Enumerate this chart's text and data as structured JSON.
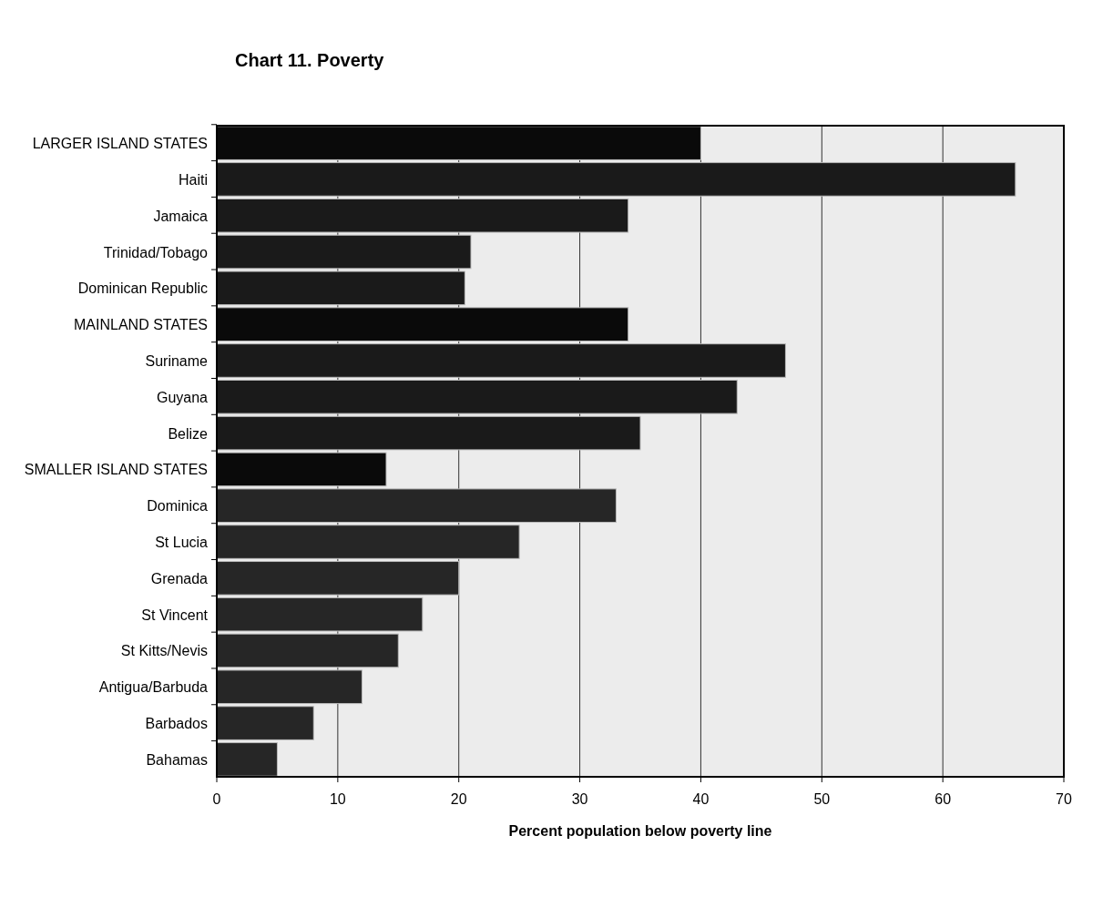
{
  "chart_data": {
    "type": "bar",
    "orientation": "horizontal",
    "title": "Chart 11. Poverty",
    "xlabel": "Percent population below poverty line",
    "categories": [
      "LARGER ISLAND STATES",
      "Haiti",
      "Jamaica",
      "Trinidad/Tobago",
      "Dominican Republic",
      "MAINLAND STATES",
      "Suriname",
      "Guyana",
      "Belize",
      "SMALLER ISLAND STATES",
      "Dominica",
      "St Lucia",
      "Grenada",
      "St Vincent",
      "St Kitts/Nevis",
      "Antigua/Barbuda",
      "Barbados",
      "Bahamas"
    ],
    "values": [
      40,
      66,
      34,
      21,
      20.5,
      34,
      47,
      43,
      35,
      14,
      33,
      25,
      20,
      17,
      15,
      12,
      8,
      5
    ],
    "colors": [
      "#0a0a0a",
      "#1a1a1a",
      "#1a1a1a",
      "#1a1a1a",
      "#1a1a1a",
      "#0a0a0a",
      "#1a1a1a",
      "#1a1a1a",
      "#1a1a1a",
      "#0a0a0a",
      "#262626",
      "#262626",
      "#262626",
      "#262626",
      "#262626",
      "#262626",
      "#262626",
      "#262626"
    ],
    "xlim": [
      0,
      70
    ],
    "xticks": [
      0,
      10,
      20,
      30,
      40,
      50,
      60,
      70
    ],
    "grid": "x"
  }
}
